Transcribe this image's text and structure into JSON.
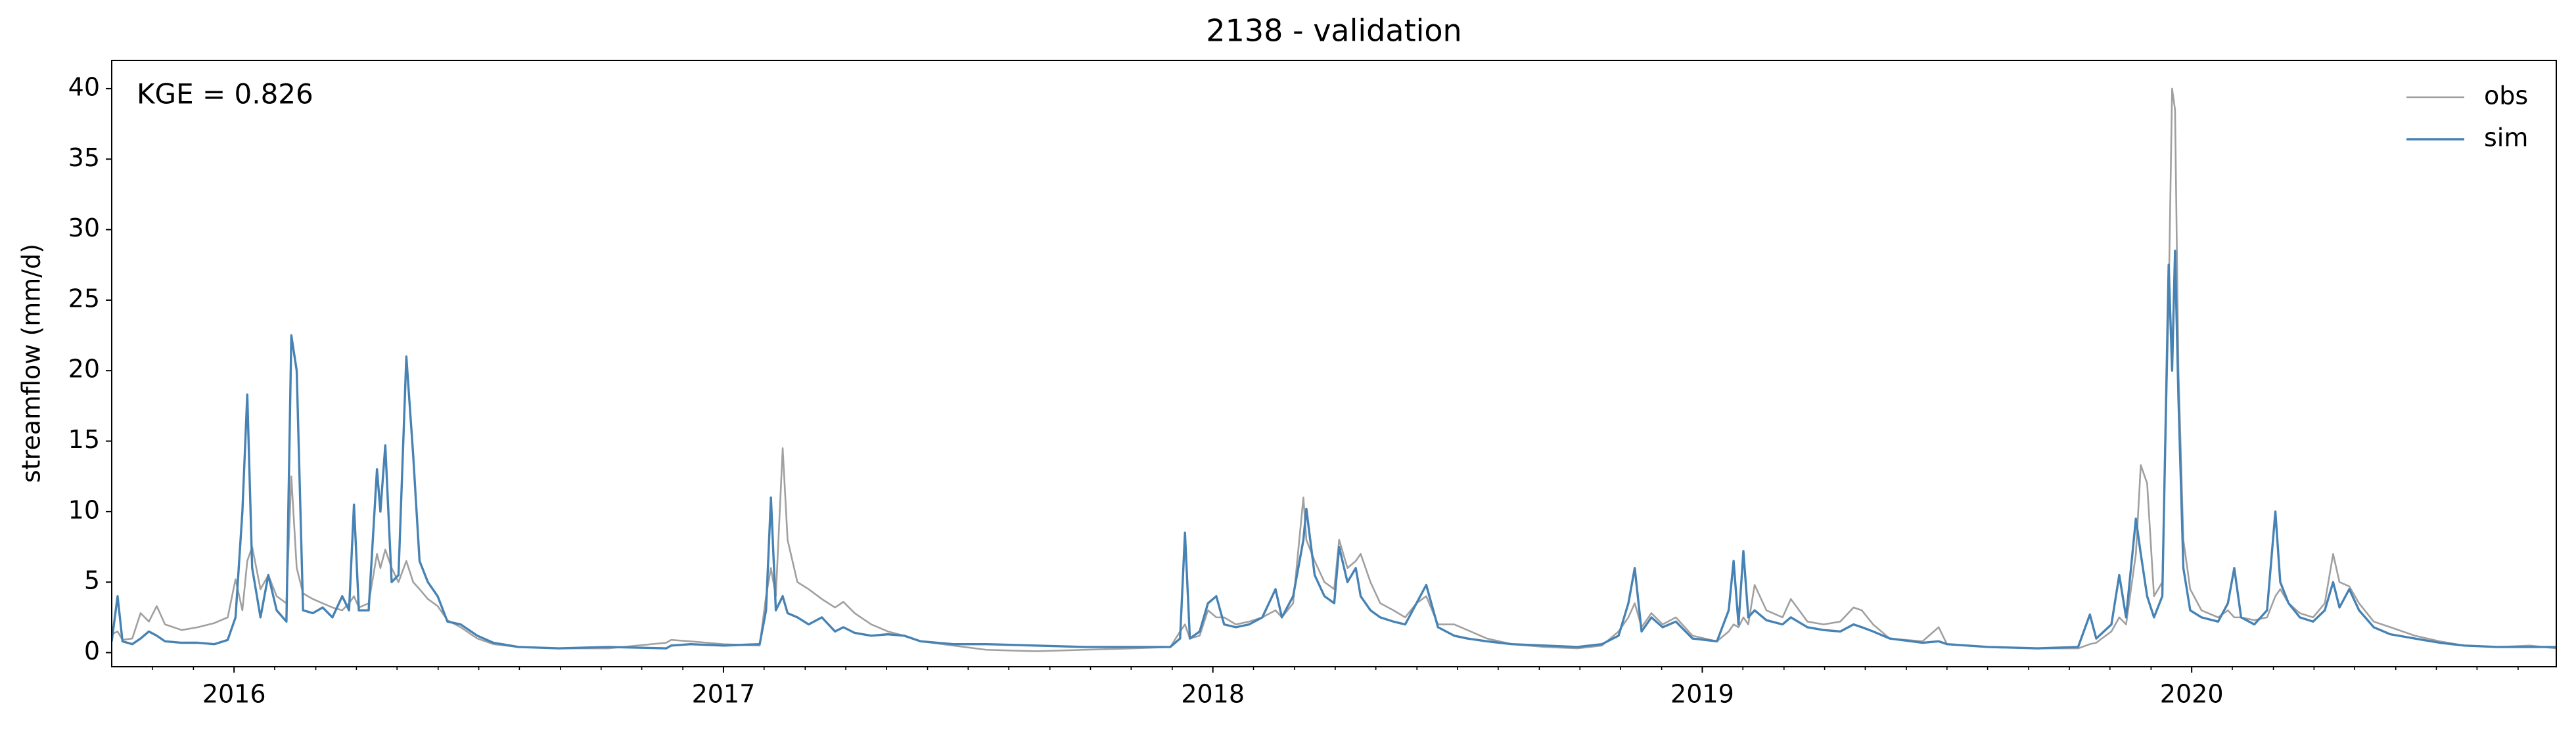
{
  "chart_data": {
    "type": "line",
    "title": "2138 - validation",
    "ylabel": "streamflow (mm/d)",
    "annotation": "KGE = 0.826",
    "legend": "upper right",
    "xlim": [
      2015.75,
      2020.745
    ],
    "ylim": [
      -1,
      42
    ],
    "xticks": [
      2016,
      2017,
      2018,
      2019,
      2020
    ],
    "xminorticks": [
      2015.833,
      2015.917,
      2016.083,
      2016.167,
      2016.25,
      2016.333,
      2016.417,
      2016.5,
      2016.583,
      2016.667,
      2016.75,
      2016.833,
      2016.917,
      2017.083,
      2017.167,
      2017.25,
      2017.333,
      2017.417,
      2017.5,
      2017.583,
      2017.667,
      2017.75,
      2017.833,
      2017.917,
      2018.083,
      2018.167,
      2018.25,
      2018.333,
      2018.417,
      2018.5,
      2018.583,
      2018.667,
      2018.75,
      2018.833,
      2018.917,
      2019.083,
      2019.167,
      2019.25,
      2019.333,
      2019.417,
      2019.5,
      2019.583,
      2019.667,
      2019.75,
      2019.833,
      2019.917,
      2020.083,
      2020.167,
      2020.25,
      2020.333,
      2020.417,
      2020.5,
      2020.583,
      2020.667
    ],
    "yticks": [
      0,
      5,
      10,
      15,
      20,
      25,
      30,
      35,
      40
    ],
    "x": [
      2015.75,
      2015.762,
      2015.772,
      2015.792,
      2015.809,
      2015.826,
      2015.842,
      2015.859,
      2015.893,
      2015.926,
      2015.96,
      2015.987,
      2016.003,
      2016.017,
      2016.027,
      2016.037,
      2016.054,
      2016.07,
      2016.087,
      2016.107,
      2016.117,
      2016.128,
      2016.141,
      2016.161,
      2016.181,
      2016.201,
      2016.221,
      2016.235,
      2016.245,
      2016.255,
      2016.275,
      2016.292,
      2016.299,
      2016.309,
      2016.322,
      2016.336,
      2016.352,
      2016.366,
      2016.379,
      2016.396,
      2016.416,
      2016.436,
      2016.463,
      2016.497,
      2016.53,
      2016.581,
      2016.664,
      2016.765,
      2016.883,
      2016.893,
      2016.933,
      2017.0,
      2017.074,
      2017.087,
      2017.097,
      2017.107,
      2017.121,
      2017.131,
      2017.151,
      2017.174,
      2017.201,
      2017.228,
      2017.245,
      2017.268,
      2017.302,
      2017.336,
      2017.369,
      2017.403,
      2017.47,
      2017.537,
      2017.638,
      2017.738,
      2017.839,
      2017.913,
      2017.933,
      2017.943,
      2017.953,
      2017.973,
      2017.99,
      2018.007,
      2018.023,
      2018.047,
      2018.074,
      2018.101,
      2018.128,
      2018.141,
      2018.164,
      2018.185,
      2018.191,
      2018.208,
      2018.228,
      2018.248,
      2018.258,
      2018.275,
      2018.292,
      2018.302,
      2018.322,
      2018.342,
      2018.369,
      2018.393,
      2018.416,
      2018.436,
      2018.46,
      2018.493,
      2018.52,
      2018.56,
      2018.611,
      2018.678,
      2018.745,
      2018.795,
      2018.829,
      2018.849,
      2018.862,
      2018.876,
      2018.896,
      2018.919,
      2018.946,
      2018.98,
      2019.03,
      2019.054,
      2019.064,
      2019.074,
      2019.084,
      2019.094,
      2019.107,
      2019.131,
      2019.164,
      2019.181,
      2019.215,
      2019.248,
      2019.282,
      2019.309,
      2019.326,
      2019.349,
      2019.383,
      2019.45,
      2019.483,
      2019.5,
      2019.584,
      2019.685,
      2019.768,
      2019.792,
      2019.805,
      2019.836,
      2019.852,
      2019.866,
      2019.886,
      2019.896,
      2019.909,
      2019.923,
      2019.94,
      2019.953,
      2019.96,
      2019.966,
      2019.973,
      2019.983,
      2019.997,
      2020.02,
      2020.054,
      2020.074,
      2020.087,
      2020.101,
      2020.128,
      2020.154,
      2020.171,
      2020.181,
      2020.198,
      2020.221,
      2020.248,
      2020.272,
      2020.289,
      2020.302,
      2020.322,
      2020.342,
      2020.372,
      2020.406,
      2020.456,
      2020.507,
      2020.557,
      2020.624,
      2020.691,
      2020.745
    ],
    "series": [
      {
        "name": "obs",
        "color": "#a0a0a0",
        "values": [
          1.3,
          1.5,
          0.9,
          1.0,
          2.8,
          2.2,
          3.3,
          2.0,
          1.6,
          1.8,
          2.1,
          2.5,
          5.2,
          3.0,
          6.5,
          7.5,
          4.5,
          5.5,
          4.0,
          3.5,
          12.5,
          6.0,
          4.2,
          3.8,
          3.5,
          3.2,
          3.0,
          3.5,
          4.0,
          3.2,
          3.5,
          7.0,
          6.0,
          7.3,
          6.0,
          5.0,
          6.5,
          5.0,
          4.5,
          3.8,
          3.3,
          2.3,
          1.8,
          1.0,
          0.6,
          0.4,
          0.3,
          0.3,
          0.7,
          0.9,
          0.8,
          0.6,
          0.5,
          4.0,
          6.0,
          4.0,
          14.5,
          8.0,
          5.0,
          4.5,
          3.8,
          3.2,
          3.6,
          2.8,
          2.0,
          1.5,
          1.2,
          0.8,
          0.5,
          0.2,
          0.1,
          0.2,
          0.3,
          0.4,
          1.5,
          2.0,
          1.0,
          1.2,
          3.0,
          2.5,
          2.5,
          2.0,
          2.2,
          2.5,
          3.0,
          2.5,
          3.5,
          11.0,
          8.0,
          6.5,
          5.0,
          4.5,
          8.0,
          6.0,
          6.5,
          7.0,
          5.0,
          3.5,
          3.0,
          2.5,
          3.5,
          4.0,
          2.0,
          2.0,
          1.6,
          1.0,
          0.6,
          0.4,
          0.3,
          0.5,
          1.5,
          2.5,
          3.5,
          1.8,
          2.8,
          2.0,
          2.5,
          1.2,
          0.8,
          1.5,
          2.0,
          1.8,
          2.5,
          2.0,
          4.8,
          3.0,
          2.5,
          3.8,
          2.2,
          2.0,
          2.2,
          3.2,
          3.0,
          2.0,
          1.0,
          0.8,
          1.8,
          0.6,
          0.4,
          0.3,
          0.3,
          0.6,
          0.7,
          1.5,
          2.5,
          2.0,
          7.0,
          13.3,
          12.0,
          4.0,
          5.0,
          25.0,
          40.0,
          38.5,
          20.0,
          8.0,
          4.5,
          3.0,
          2.5,
          3.0,
          2.5,
          2.5,
          2.3,
          2.5,
          4.0,
          4.5,
          3.5,
          2.8,
          2.5,
          3.5,
          7.0,
          5.0,
          4.7,
          3.5,
          2.2,
          1.8,
          1.2,
          0.8,
          0.5,
          0.4,
          0.5,
          0.3
        ]
      },
      {
        "name": "sim",
        "color": "#4682b4",
        "values": [
          0.8,
          4.0,
          0.8,
          0.6,
          1.0,
          1.5,
          1.2,
          0.8,
          0.7,
          0.7,
          0.6,
          0.9,
          2.5,
          10.0,
          18.3,
          6.0,
          2.5,
          5.5,
          3.0,
          2.2,
          22.5,
          20.0,
          3.0,
          2.8,
          3.2,
          2.5,
          4.0,
          3.0,
          10.5,
          3.0,
          3.0,
          13.0,
          10.0,
          14.7,
          5.0,
          5.5,
          21.0,
          14.0,
          6.5,
          5.0,
          4.0,
          2.2,
          2.0,
          1.2,
          0.7,
          0.4,
          0.3,
          0.4,
          0.3,
          0.5,
          0.6,
          0.5,
          0.6,
          3.0,
          11.0,
          3.0,
          4.0,
          2.8,
          2.5,
          2.0,
          2.5,
          1.5,
          1.8,
          1.4,
          1.2,
          1.3,
          1.2,
          0.8,
          0.6,
          0.6,
          0.5,
          0.4,
          0.4,
          0.4,
          1.0,
          8.5,
          1.0,
          1.5,
          3.5,
          4.0,
          2.0,
          1.8,
          2.0,
          2.5,
          4.5,
          2.5,
          4.0,
          8.0,
          10.2,
          5.5,
          4.0,
          3.5,
          7.5,
          5.0,
          6.0,
          4.0,
          3.0,
          2.5,
          2.2,
          2.0,
          3.5,
          4.8,
          1.8,
          1.2,
          1.0,
          0.8,
          0.6,
          0.5,
          0.4,
          0.6,
          1.2,
          3.5,
          6.0,
          1.5,
          2.5,
          1.8,
          2.2,
          1.0,
          0.8,
          3.0,
          6.5,
          2.0,
          7.2,
          2.5,
          3.0,
          2.3,
          2.0,
          2.5,
          1.8,
          1.6,
          1.5,
          2.0,
          1.8,
          1.5,
          1.0,
          0.7,
          0.8,
          0.6,
          0.4,
          0.3,
          0.4,
          2.7,
          1.0,
          2.0,
          5.5,
          2.5,
          9.5,
          7.0,
          4.0,
          2.5,
          4.0,
          27.5,
          20.0,
          28.5,
          18.0,
          6.0,
          3.0,
          2.5,
          2.2,
          3.5,
          6.0,
          2.5,
          2.0,
          3.0,
          10.0,
          5.0,
          3.5,
          2.5,
          2.2,
          3.0,
          5.0,
          3.2,
          4.5,
          3.0,
          1.8,
          1.3,
          1.0,
          0.7,
          0.5,
          0.4,
          0.4,
          0.4
        ]
      }
    ]
  }
}
